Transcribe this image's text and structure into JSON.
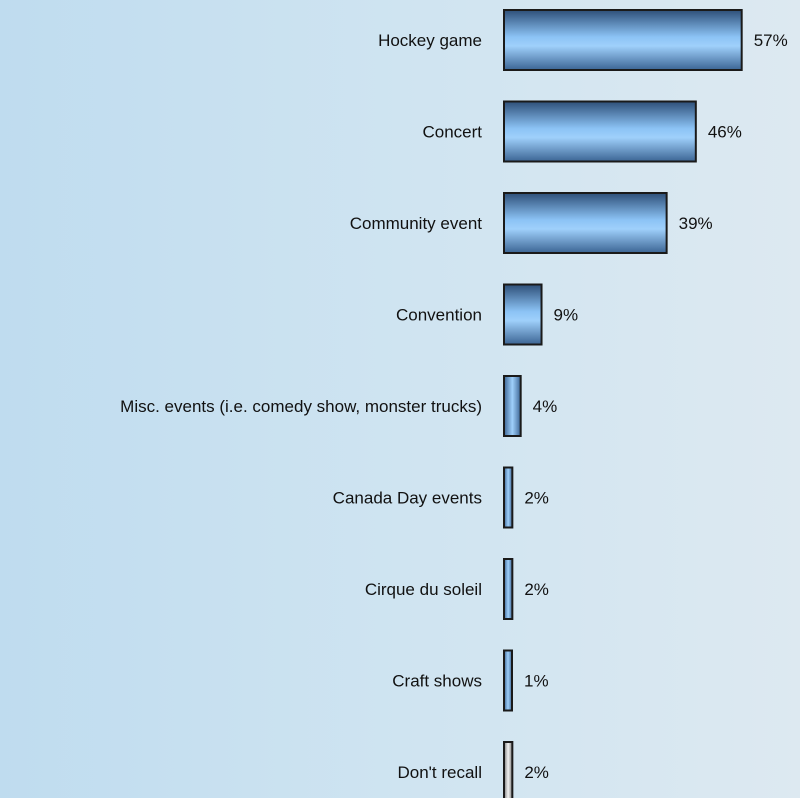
{
  "chart_data": {
    "type": "bar",
    "orientation": "horizontal",
    "title": "",
    "xlabel": "",
    "ylabel": "",
    "grid": false,
    "legend": "none",
    "value_suffix": "%",
    "xlim": [
      0,
      60
    ],
    "categories": [
      "Hockey game",
      "Concert",
      "Community event",
      "Convention",
      "Misc. events (i.e. comedy show, monster trucks)",
      "Canada Day events",
      "Cirque du soleil",
      "Craft shows",
      "Don't recall"
    ],
    "values": [
      57,
      46,
      39,
      9,
      4,
      2,
      2,
      1,
      2
    ],
    "value_labels": [
      "57%",
      "46%",
      "39%",
      "9%",
      "4%",
      "2%",
      "2%",
      "1%",
      "2%"
    ],
    "bar_colors": [
      "#8cc3f5",
      "#8cc3f5",
      "#8cc3f5",
      "#8cc3f5",
      "#8cc3f5",
      "#8cc3f5",
      "#8cc3f5",
      "#8cc3f5",
      "#d9d9d9"
    ],
    "bar_outline_color": "#1a1a1a"
  }
}
